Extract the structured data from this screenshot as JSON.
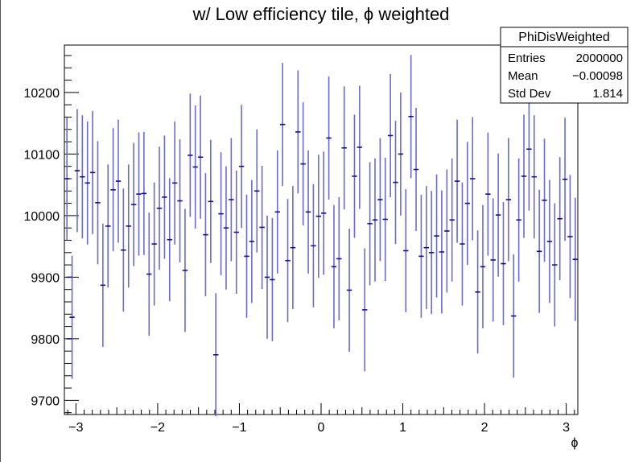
{
  "chart_data": {
    "type": "scatter",
    "style": "histogram-errorbars",
    "title": "w/ Low efficiency tile, ϕ weighted",
    "xlabel": "ϕ",
    "ylabel": "",
    "xlim": [
      -3.1416,
      3.1416
    ],
    "ylim": [
      9677,
      10277
    ],
    "xticks": [
      -3,
      -2,
      -1,
      0,
      1,
      2,
      3
    ],
    "xtick_labels": [
      "−3",
      "−2",
      "−1",
      "0",
      "1",
      "2",
      "3"
    ],
    "yticks": [
      9700,
      9800,
      9900,
      10000,
      10100,
      10200
    ],
    "ytick_labels": [
      "9700",
      "9800",
      "9900",
      "10000",
      "10100",
      "10200"
    ],
    "grid": false,
    "legend": "none",
    "marker_color": "#1d0d80",
    "error_color": "#6a6ad0",
    "bins": 100,
    "values": [
      10060,
      9835,
      10073,
      10063,
      10053,
      10070,
      10021,
      9887,
      9983,
      10042,
      10056,
      9944,
      9983,
      10018,
      10035,
      10036,
      9905,
      9954,
      10012,
      10030,
      9961,
      10053,
      10024,
      9911,
      10098,
      10079,
      10095,
      9969,
      10023,
      9774,
      10003,
      9980,
      10026,
      9973,
      10080,
      9934,
      9958,
      10040,
      9981,
      9900,
      9896,
      10006,
      10148,
      9927,
      9948,
      10136,
      10084,
      10006,
      9951,
      9999,
      10004,
      10126,
      9917,
      9930,
      10110,
      9879,
      10064,
      10111,
      9847,
      9987,
      9993,
      10026,
      9994,
      10130,
      10054,
      10100,
      9943,
      10161,
      10075,
      9934,
      9948,
      9940,
      9967,
      9941,
      9975,
      9993,
      10056,
      9954,
      10020,
      10060,
      9876,
      9917,
      10035,
      9928,
      10001,
      9922,
      10026,
      9837,
      9993,
      10064,
      10108,
      10063,
      9942,
      10025,
      9958,
      9920,
      9995,
      10059,
      9966,
      9929
    ],
    "errors": [
      100,
      100,
      100,
      100,
      100,
      100,
      100,
      100,
      100,
      100,
      100,
      100,
      100,
      100,
      100,
      100,
      100,
      100,
      100,
      100,
      100,
      100,
      100,
      100,
      100,
      100,
      100,
      100,
      100,
      100,
      100,
      100,
      100,
      100,
      100,
      100,
      100,
      100,
      100,
      100,
      100,
      100,
      100,
      100,
      100,
      100,
      100,
      100,
      100,
      100,
      100,
      100,
      100,
      100,
      100,
      100,
      100,
      100,
      100,
      100,
      100,
      100,
      100,
      100,
      100,
      100,
      100,
      100,
      100,
      100,
      100,
      100,
      100,
      100,
      100,
      100,
      100,
      100,
      100,
      100,
      100,
      100,
      100,
      100,
      100,
      100,
      100,
      100,
      100,
      100,
      100,
      100,
      100,
      100,
      100,
      100,
      100,
      100,
      100,
      100
    ],
    "extra_points": [
      {
        "x": -3.08,
        "y": 9800
      },
      {
        "x": -3.08,
        "y": 9900
      }
    ]
  },
  "stats_box": {
    "name": "PhiDisWeighted",
    "rows": [
      {
        "label": "Entries",
        "value": "2000000"
      },
      {
        "label": "Mean",
        "value": "−0.00098"
      },
      {
        "label": "Std Dev",
        "value": "1.814"
      }
    ]
  }
}
